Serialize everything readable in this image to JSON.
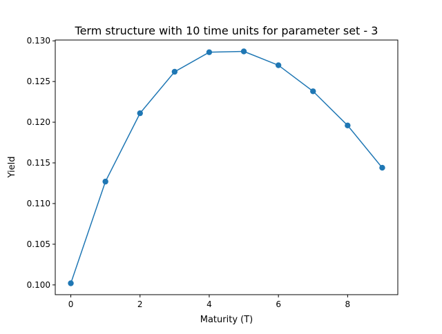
{
  "chart_data": {
    "type": "line",
    "title": "Term structure with 10 time units for parameter set - 3",
    "xlabel": "Maturity (T)",
    "ylabel": "Yield",
    "x": [
      0,
      1,
      2,
      3,
      4,
      5,
      6,
      7,
      8,
      9
    ],
    "series": [
      {
        "values": [
          0.1002,
          0.1127,
          0.1211,
          0.1262,
          0.1286,
          0.1287,
          0.127,
          0.1238,
          0.1196,
          0.1144
        ],
        "color": "#1f77b4",
        "marker": "circle"
      }
    ],
    "xlim": [
      -0.45,
      9.45
    ],
    "ylim": [
      0.0988,
      0.1301
    ],
    "xticks": [
      0,
      2,
      4,
      6,
      8
    ],
    "xtick_labels": [
      "0",
      "2",
      "4",
      "6",
      "8"
    ],
    "yticks": [
      0.1,
      0.105,
      0.11,
      0.115,
      0.12,
      0.125,
      0.13
    ],
    "ytick_labels": [
      "0.100",
      "0.105",
      "0.110",
      "0.115",
      "0.120",
      "0.125",
      "0.130"
    ],
    "grid": false,
    "legend": false
  }
}
